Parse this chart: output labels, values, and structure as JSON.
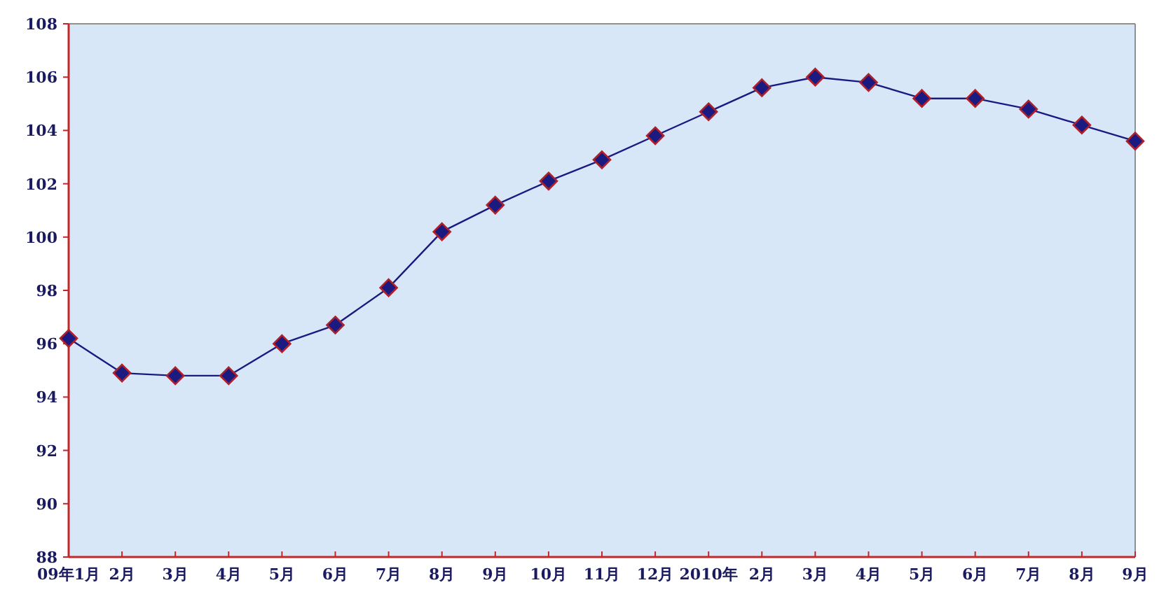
{
  "chart_data": {
    "type": "line",
    "categories": [
      "09年1月",
      "2月",
      "3月",
      "4月",
      "5月",
      "6月",
      "7月",
      "8月",
      "9月",
      "10月",
      "11月",
      "12月",
      "2010年",
      "2月",
      "3月",
      "4月",
      "5月",
      "6月",
      "7月",
      "8月",
      "9月"
    ],
    "series": [
      {
        "color": "#1a1a80",
        "values": [
          96.2,
          94.9,
          94.8,
          94.8,
          96.0,
          96.7,
          98.1,
          100.2,
          101.2,
          102.1,
          102.9,
          103.8,
          104.7,
          105.6,
          106.0,
          105.8,
          105.2,
          105.2,
          104.8,
          104.2,
          103.6
        ]
      }
    ],
    "ylim": [
      88,
      108
    ],
    "yticks": [
      88,
      90,
      92,
      94,
      96,
      98,
      100,
      102,
      104,
      106,
      108
    ],
    "marker": "diamond",
    "grid": false
  }
}
